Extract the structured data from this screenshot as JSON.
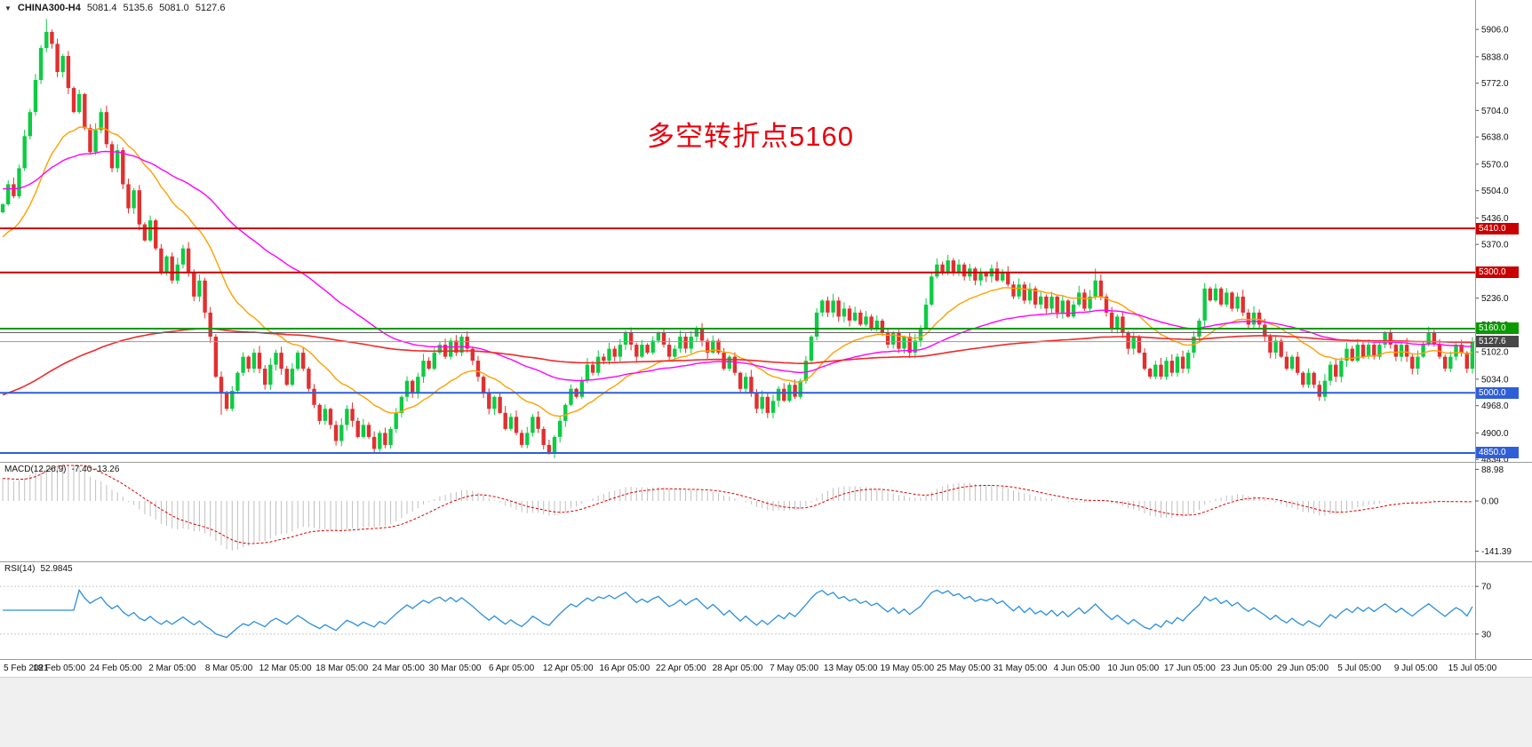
{
  "header": {
    "collapse_icon": "▼",
    "symbol": "CHINA300-H4",
    "open": "5081.4",
    "high": "5135.6",
    "low": "5081.0",
    "close": "5127.6"
  },
  "annotation": {
    "text": "多空转折点5160",
    "color": "#e8000d"
  },
  "chart_data": {
    "type": "candlestick",
    "symbol": "CHINA300",
    "timeframe": "H4",
    "title": "CHINA300-H4 5081.4 5135.6 5081.0 5127.6",
    "price_range": [
      4830,
      5975
    ],
    "up_color": "#0ecb43",
    "down_color": "#e03030",
    "first_open": 5450,
    "closes": [
      5470,
      5520,
      5490,
      5560,
      5640,
      5700,
      5780,
      5860,
      5900,
      5870,
      5800,
      5840,
      5760,
      5700,
      5745,
      5660,
      5600,
      5655,
      5700,
      5620,
      5560,
      5605,
      5520,
      5460,
      5505,
      5420,
      5380,
      5430,
      5360,
      5300,
      5340,
      5280,
      5320,
      5360,
      5300,
      5240,
      5280,
      5200,
      5140,
      5040,
      5000,
      4960,
      5005,
      5050,
      5090,
      5060,
      5100,
      5060,
      5020,
      5070,
      5100,
      5060,
      5020,
      5060,
      5100,
      5060,
      5010,
      4970,
      4930,
      4960,
      4920,
      4880,
      4920,
      4960,
      4930,
      4890,
      4920,
      4890,
      4860,
      4900,
      4870,
      4910,
      4950,
      4990,
      5030,
      5000,
      5040,
      5080,
      5060,
      5100,
      5120,
      5090,
      5130,
      5100,
      5140,
      5110,
      5080,
      5040,
      5000,
      4960,
      4990,
      4950,
      4910,
      4940,
      4900,
      4870,
      4900,
      4940,
      4910,
      4870,
      4850,
      4890,
      4930,
      4970,
      5010,
      4990,
      5030,
      5070,
      5050,
      5090,
      5080,
      5110,
      5090,
      5120,
      5150,
      5120,
      5090,
      5120,
      5100,
      5130,
      5150,
      5120,
      5090,
      5110,
      5140,
      5110,
      5140,
      5160,
      5130,
      5100,
      5130,
      5100,
      5060,
      5090,
      5050,
      5010,
      5040,
      5000,
      4960,
      4990,
      4950,
      4980,
      5010,
      4980,
      5020,
      4990,
      5030,
      5080,
      5140,
      5200,
      5230,
      5200,
      5230,
      5190,
      5210,
      5180,
      5200,
      5170,
      5190,
      5160,
      5180,
      5150,
      5120,
      5150,
      5110,
      5140,
      5100,
      5130,
      5160,
      5220,
      5290,
      5320,
      5300,
      5330,
      5300,
      5320,
      5290,
      5310,
      5280,
      5300,
      5290,
      5310,
      5280,
      5300,
      5270,
      5240,
      5270,
      5230,
      5260,
      5220,
      5240,
      5210,
      5240,
      5200,
      5230,
      5190,
      5220,
      5250,
      5210,
      5240,
      5280,
      5240,
      5200,
      5160,
      5190,
      5150,
      5110,
      5140,
      5100,
      5060,
      5040,
      5070,
      5040,
      5080,
      5050,
      5090,
      5060,
      5100,
      5140,
      5180,
      5260,
      5230,
      5260,
      5220,
      5250,
      5210,
      5240,
      5200,
      5170,
      5200,
      5170,
      5140,
      5100,
      5130,
      5090,
      5060,
      5090,
      5050,
      5020,
      5050,
      5020,
      4990,
      5030,
      5070,
      5040,
      5080,
      5110,
      5080,
      5120,
      5090,
      5120,
      5090,
      5120,
      5150,
      5120,
      5090,
      5120,
      5090,
      5060,
      5090,
      5120,
      5150,
      5120,
      5090,
      5060,
      5090,
      5120,
      5100,
      5060,
      5127.6
    ],
    "wick_overrides": {
      "high": {
        "8": 5932,
        "200": 5310
      },
      "low": {
        "40": 4945,
        "68": 4852,
        "100": 4846
      }
    },
    "overlays": [
      {
        "name": "ma-fast",
        "period": 20,
        "seed": 5380,
        "color": "#ffa000",
        "width": 1.4
      },
      {
        "name": "ma-medium",
        "period": 60,
        "seed": 5510,
        "color": "#ff00ff",
        "width": 1.4
      },
      {
        "name": "ma-slow",
        "period": 200,
        "seed": 4990,
        "color": "#ef2929",
        "width": 1.6
      }
    ],
    "levels": [
      {
        "price": 5410.0,
        "label": "5410.0",
        "color": "#c80000",
        "width": 2,
        "badge_bg": "#c80000"
      },
      {
        "price": 5300.0,
        "label": "5300.0",
        "color": "#c80000",
        "width": 2,
        "badge_bg": "#c80000"
      },
      {
        "price": 5160.0,
        "label": "5160.0",
        "color": "#0a9a00",
        "width": 2,
        "badge_bg": "#0a9a00"
      },
      {
        "price": 5150.0,
        "label": "",
        "color": "#606060",
        "width": 1,
        "badge_bg": ""
      },
      {
        "price": 5000.0,
        "label": "5000.0",
        "color": "#2f5fd7",
        "width": 2,
        "badge_bg": "#2f5fd7"
      },
      {
        "price": 4850.0,
        "label": "4850.0",
        "color": "#2f5fd7",
        "width": 2,
        "badge_bg": "#2f5fd7"
      }
    ],
    "current_price": {
      "value": 5127.6,
      "label": "5127.6",
      "badge_bg": "#474747",
      "line_color": "#9a9a9a"
    },
    "y_ticks": [
      "5906.0",
      "5838.0",
      "5772.0",
      "5704.0",
      "5638.0",
      "5570.0",
      "5504.0",
      "5436.0",
      "5370.0",
      "5304.0",
      "5236.0",
      "5170.0",
      "5102.0",
      "5034.0",
      "4968.0",
      "4900.0",
      "4834.0"
    ],
    "x_labels": [
      "5 Feb 2021",
      "18 Feb 05:00",
      "24 Feb 05:00",
      "2 Mar 05:00",
      "8 Mar 05:00",
      "12 Mar 05:00",
      "18 Mar 05:00",
      "24 Mar 05:00",
      "30 Mar 05:00",
      "6 Apr 05:00",
      "12 Apr 05:00",
      "16 Apr 05:00",
      "22 Apr 05:00",
      "28 Apr 05:00",
      "7 May 05:00",
      "13 May 05:00",
      "19 May 05:00",
      "25 May 05:00",
      "31 May 05:00",
      "4 Jun 05:00",
      "10 Jun 05:00",
      "17 Jun 05:00",
      "23 Jun 05:00",
      "29 Jun 05:00",
      "5 Jul 05:00",
      "9 Jul 05:00",
      "15 Jul 05:00"
    ],
    "macd": {
      "label": "MACD(12,26,9)",
      "current_values": "-7.40 -13.26",
      "fast": 12,
      "slow": 26,
      "signal": 9,
      "seed_fast": 5490,
      "seed_slow": 5420,
      "range": [
        -160,
        100
      ],
      "ticks": [
        "88.98",
        "0.00",
        "-141.39"
      ],
      "tick_values": [
        88.98,
        0,
        -141.39
      ],
      "histogram_color": "#bfbfbf",
      "signal_color": "#e00000"
    },
    "rsi": {
      "label": "RSI(14)",
      "current_value": "52.9845",
      "period": 14,
      "range": [
        12,
        88
      ],
      "levels": [
        70,
        30
      ],
      "ticks": [
        "70",
        "30"
      ],
      "color": "#2b8fdd"
    }
  }
}
